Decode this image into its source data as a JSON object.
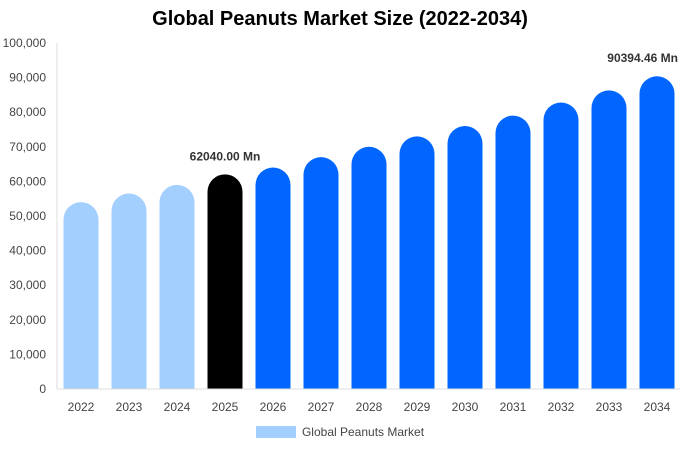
{
  "chart_data": {
    "type": "bar",
    "title": "Global Peanuts Market Size (2022-2034)",
    "xlabel": "",
    "ylabel": "",
    "ylim": [
      0,
      100000
    ],
    "yticks": [
      "0",
      "10,000",
      "20,000",
      "30,000",
      "40,000",
      "50,000",
      "60,000",
      "70,000",
      "80,000",
      "90,000",
      "100,000"
    ],
    "categories": [
      "2022",
      "2023",
      "2024",
      "2025",
      "2026",
      "2027",
      "2028",
      "2029",
      "2030",
      "2031",
      "2032",
      "2033",
      "2034"
    ],
    "series": [
      {
        "name": "Global Peanuts Market",
        "values": [
          54000,
          56500,
          59000,
          62040,
          64000,
          67000,
          70000,
          73000,
          76000,
          79000,
          82800,
          86300,
          90394.46
        ]
      }
    ],
    "bar_colors": [
      "#a3cfff",
      "#a3cfff",
      "#a3cfff",
      "#000000",
      "#0066ff",
      "#0066ff",
      "#0066ff",
      "#0066ff",
      "#0066ff",
      "#0066ff",
      "#0066ff",
      "#0066ff",
      "#0066ff"
    ],
    "annotations": [
      {
        "category": "2025",
        "text": "62040.00 Mn"
      },
      {
        "category": "2034",
        "text": "90394.46 Mn"
      }
    ],
    "grid": false,
    "legend": {
      "position": "bottom",
      "label": "Global Peanuts Market",
      "color": "#a3cfff"
    }
  }
}
